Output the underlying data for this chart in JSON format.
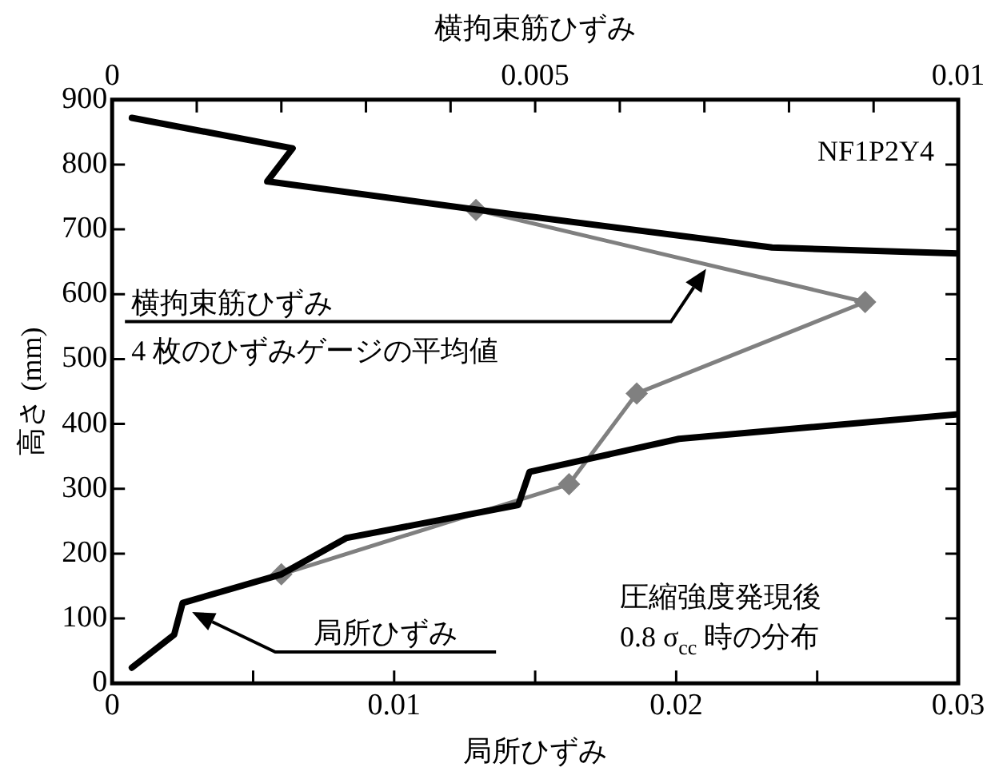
{
  "chart_data": {
    "type": "line",
    "xlabel": "局所ひずみ",
    "x2label": "横拘束筋ひずみ",
    "ylabel": "高さ (mm)",
    "xlim": [
      0,
      0.03
    ],
    "xticks": [
      0,
      {
        "value": 0.005,
        "label": null
      },
      0.01,
      {
        "value": 0.015,
        "label": null
      },
      0.02,
      {
        "value": 0.025,
        "label": null
      },
      0.03
    ],
    "x2lim": [
      0,
      0.01
    ],
    "x2ticks": [
      0,
      {
        "value": 0.001,
        "label": null
      },
      {
        "value": 0.002,
        "label": null
      },
      {
        "value": 0.003,
        "label": null
      },
      {
        "value": 0.004,
        "label": null
      },
      0.005,
      {
        "value": 0.006,
        "label": null
      },
      {
        "value": 0.007,
        "label": null
      },
      {
        "value": 0.008,
        "label": null
      },
      {
        "value": 0.009,
        "label": null
      },
      0.01
    ],
    "ylim": [
      0,
      900
    ],
    "yticks": [
      0,
      100,
      200,
      300,
      400,
      500,
      600,
      700,
      800,
      900
    ],
    "grid": false,
    "legend": false,
    "series": [
      {
        "color": "#000000",
        "marker": "none",
        "x": [
          0.0007,
          0.0022,
          0.0025,
          0.006,
          0.0083,
          0.0144,
          0.0148,
          0.0201,
          0.03,
          null,
          0.03,
          0.0234,
          0.013,
          0.0055,
          0.0064,
          0.0007
        ],
        "values": [
          24,
          75,
          124,
          168,
          224,
          275,
          326,
          377,
          415,
          null,
          663,
          672,
          730,
          774,
          825,
          872
        ]
      },
      {
        "color": "#808080",
        "marker": "diamond",
        "axis": "x2",
        "x": [
          0.002,
          0.0054,
          0.0062,
          0.0089,
          0.0043
        ],
        "values": [
          168,
          307,
          447,
          588,
          730
        ]
      }
    ],
    "annotations": [
      "横拘束筋ひずみ\n4 枚のひずみゲージの平均値",
      "局所ひずみ",
      "NF1P2Y4",
      "圧縮強度発現後\n0.8 σ$_{cc}$ 時の分布"
    ]
  }
}
